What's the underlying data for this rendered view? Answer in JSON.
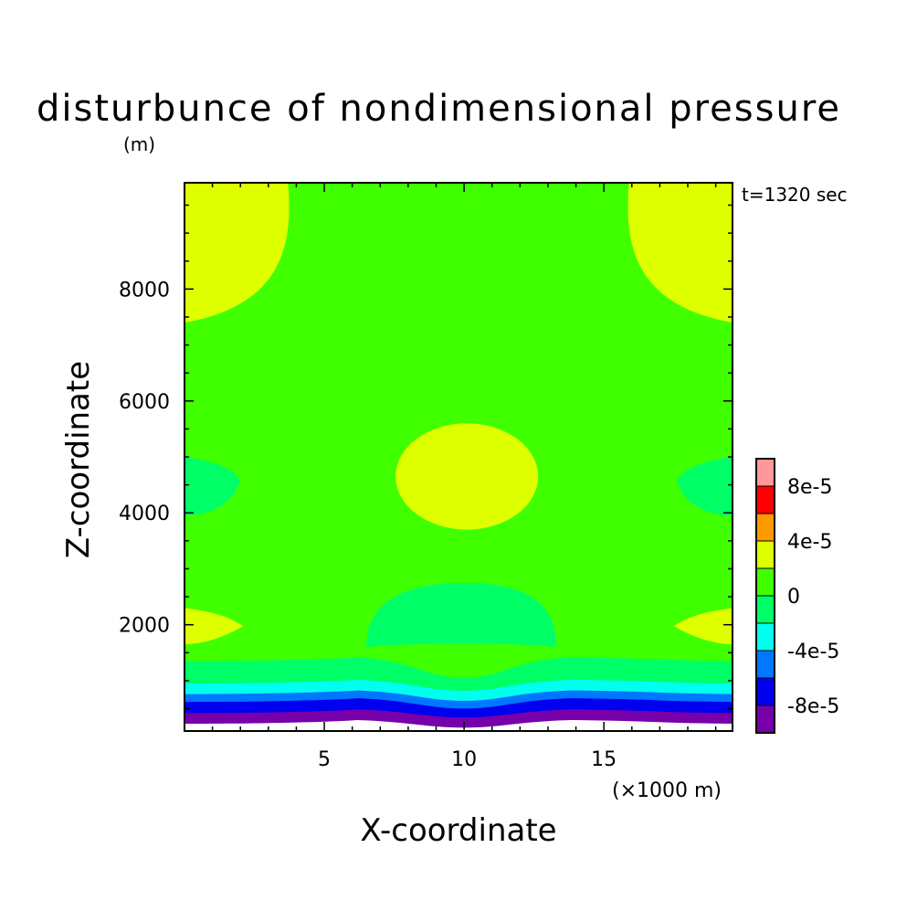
{
  "chart_data": {
    "type": "heatmap",
    "title": "disturbunce of nondimensional pressure",
    "unit_label": "(m)",
    "time_label": "t=1320 sec",
    "xlabel": "X-coordinate",
    "x_unit_label": "(×1000 m)",
    "ylabel": "Z-coordinate",
    "xlim": [
      0,
      19.6
    ],
    "ylim": [
      100,
      9900
    ],
    "x_ticks": [
      5,
      10,
      15
    ],
    "x_tick_labels": [
      "5",
      "10",
      "15"
    ],
    "y_ticks": [
      2000,
      4000,
      6000,
      8000
    ],
    "y_tick_labels": [
      "2000",
      "4000",
      "6000",
      "8000"
    ],
    "background_level_color": "#40ff00",
    "levels": [
      {
        "min": -0.0001,
        "max": -8e-05,
        "color": "#7700aa"
      },
      {
        "min": -8e-05,
        "max": -6e-05,
        "color": "#0000ee"
      },
      {
        "min": -6e-05,
        "max": -4e-05,
        "color": "#0077ff"
      },
      {
        "min": -4e-05,
        "max": -2e-05,
        "color": "#00ffee"
      },
      {
        "min": -2e-05,
        "max": 0,
        "color": "#00ff66"
      },
      {
        "min": 0,
        "max": 2e-05,
        "color": "#40ff00"
      },
      {
        "min": 2e-05,
        "max": 4e-05,
        "color": "#ddff00"
      },
      {
        "min": 4e-05,
        "max": 6e-05,
        "color": "#ff9900"
      },
      {
        "min": 6e-05,
        "max": 8e-05,
        "color": "#ff0000"
      },
      {
        "min": 8e-05,
        "max": 0.0001,
        "color": "#ff9999"
      }
    ],
    "colorbar_tick_labels": [
      "-8e-5",
      "-4e-5",
      "0",
      "4e-5",
      "8e-5"
    ],
    "colorbar_tick_values": [
      -8e-05,
      -4e-05,
      0,
      4e-05,
      8e-05
    ],
    "regions": [
      {
        "level": 6,
        "shape": "corner-top-left",
        "x": [
          0,
          3.7
        ],
        "z": [
          7400,
          9900
        ]
      },
      {
        "level": 6,
        "shape": "corner-top-right",
        "x": [
          15.9,
          19.6
        ],
        "z": [
          7400,
          9900
        ]
      },
      {
        "level": 6,
        "shape": "ellipse",
        "cx": 10.1,
        "cz": 4650,
        "rx": 2.55,
        "rz": 950
      },
      {
        "level": 4,
        "shape": "edge-left-lens",
        "x": [
          0,
          1.9
        ],
        "z": [
          3950,
          5000
        ]
      },
      {
        "level": 4,
        "shape": "edge-right-lens",
        "x": [
          17.7,
          19.6
        ],
        "z": [
          3950,
          5000
        ]
      },
      {
        "level": 6,
        "shape": "edge-left-wedge",
        "x": [
          0,
          2.1
        ],
        "z": [
          1650,
          2300
        ]
      },
      {
        "level": 6,
        "shape": "edge-right-wedge",
        "x": [
          17.5,
          19.6
        ],
        "z": [
          1650,
          2300
        ]
      },
      {
        "level": 4,
        "shape": "dome",
        "cx": 10.0,
        "x": [
          6.5,
          13.3
        ],
        "z": [
          1600,
          2750
        ]
      }
    ],
    "bands": [
      {
        "level": 4,
        "top_edge_z": 1350,
        "top_center_z": 1050
      },
      {
        "level": 3,
        "top_edge_z": 950,
        "top_center_z": 820
      },
      {
        "level": 2,
        "top_edge_z": 760,
        "top_center_z": 640
      },
      {
        "level": 1,
        "top_edge_z": 620,
        "top_center_z": 500
      },
      {
        "level": 0,
        "top_edge_z": 420,
        "top_center_z": 340
      },
      {
        "level": -1,
        "top_edge_z": 230,
        "top_center_z": 160
      }
    ]
  }
}
